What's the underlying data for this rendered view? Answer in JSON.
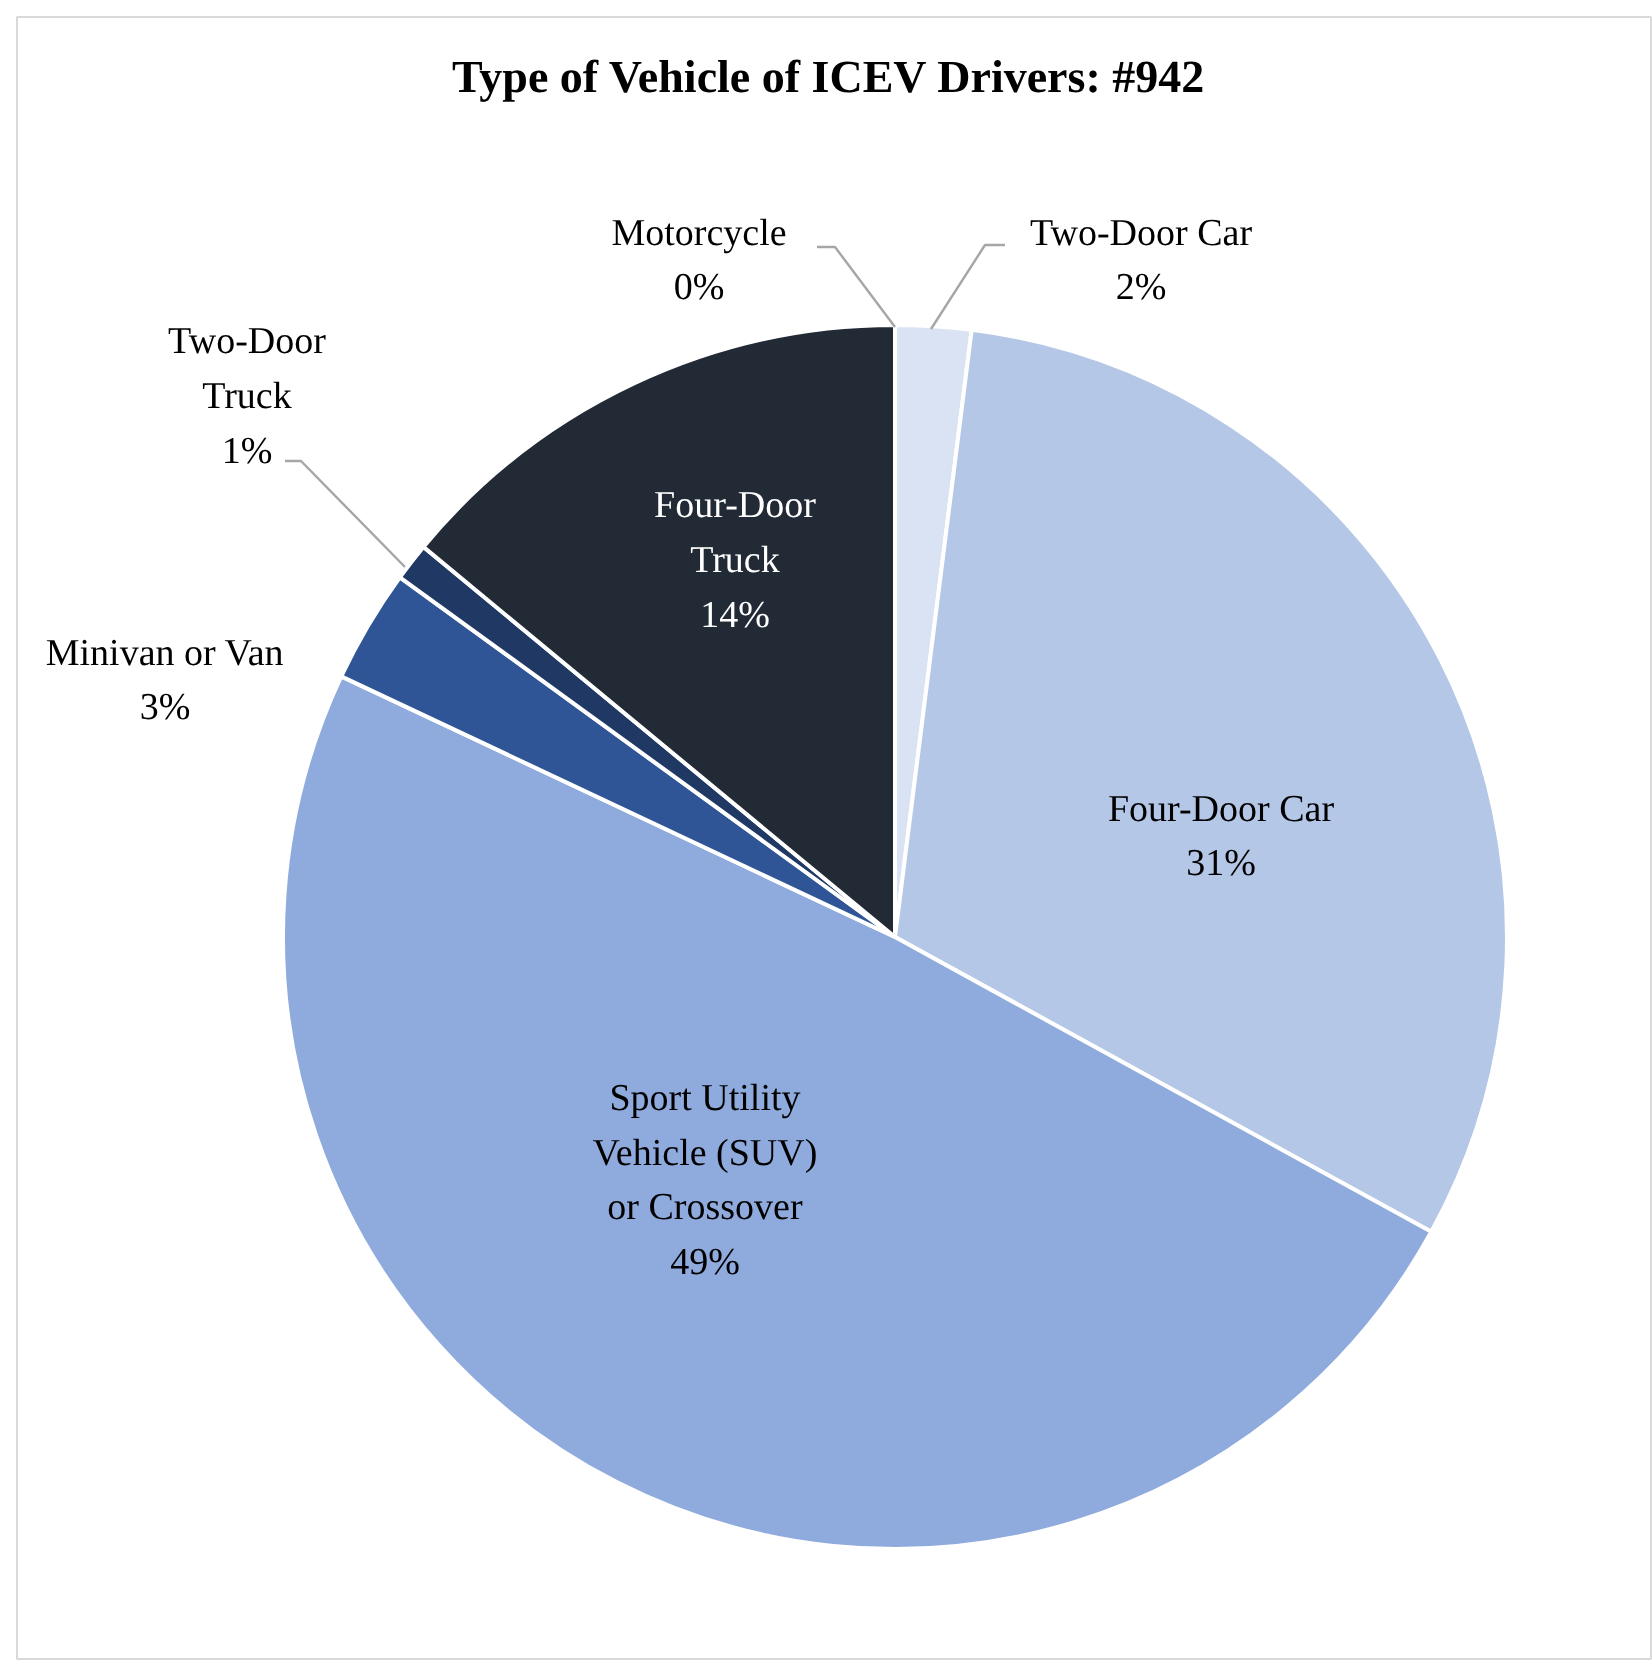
{
  "chart_data": {
    "type": "pie",
    "title": "Type of Vehicle of ICEV Drivers: #942",
    "categories": [
      "Two-Door Car",
      "Four-Door Car",
      "Sport Utility Vehicle (SUV) or Crossover",
      "Minivan or Van",
      "Two-Door Truck",
      "Four-Door Truck",
      "Motorcycle"
    ],
    "values": [
      2,
      31,
      49,
      3,
      1,
      14,
      0
    ],
    "colors": [
      "#dae3f3",
      "#b4c7e7",
      "#8faadc",
      "#2f5597",
      "#203864",
      "#222a35",
      "#adb9ca"
    ],
    "value_labels": [
      "2%",
      "31%",
      "49%",
      "3%",
      "1%",
      "14%",
      "0%"
    ]
  }
}
